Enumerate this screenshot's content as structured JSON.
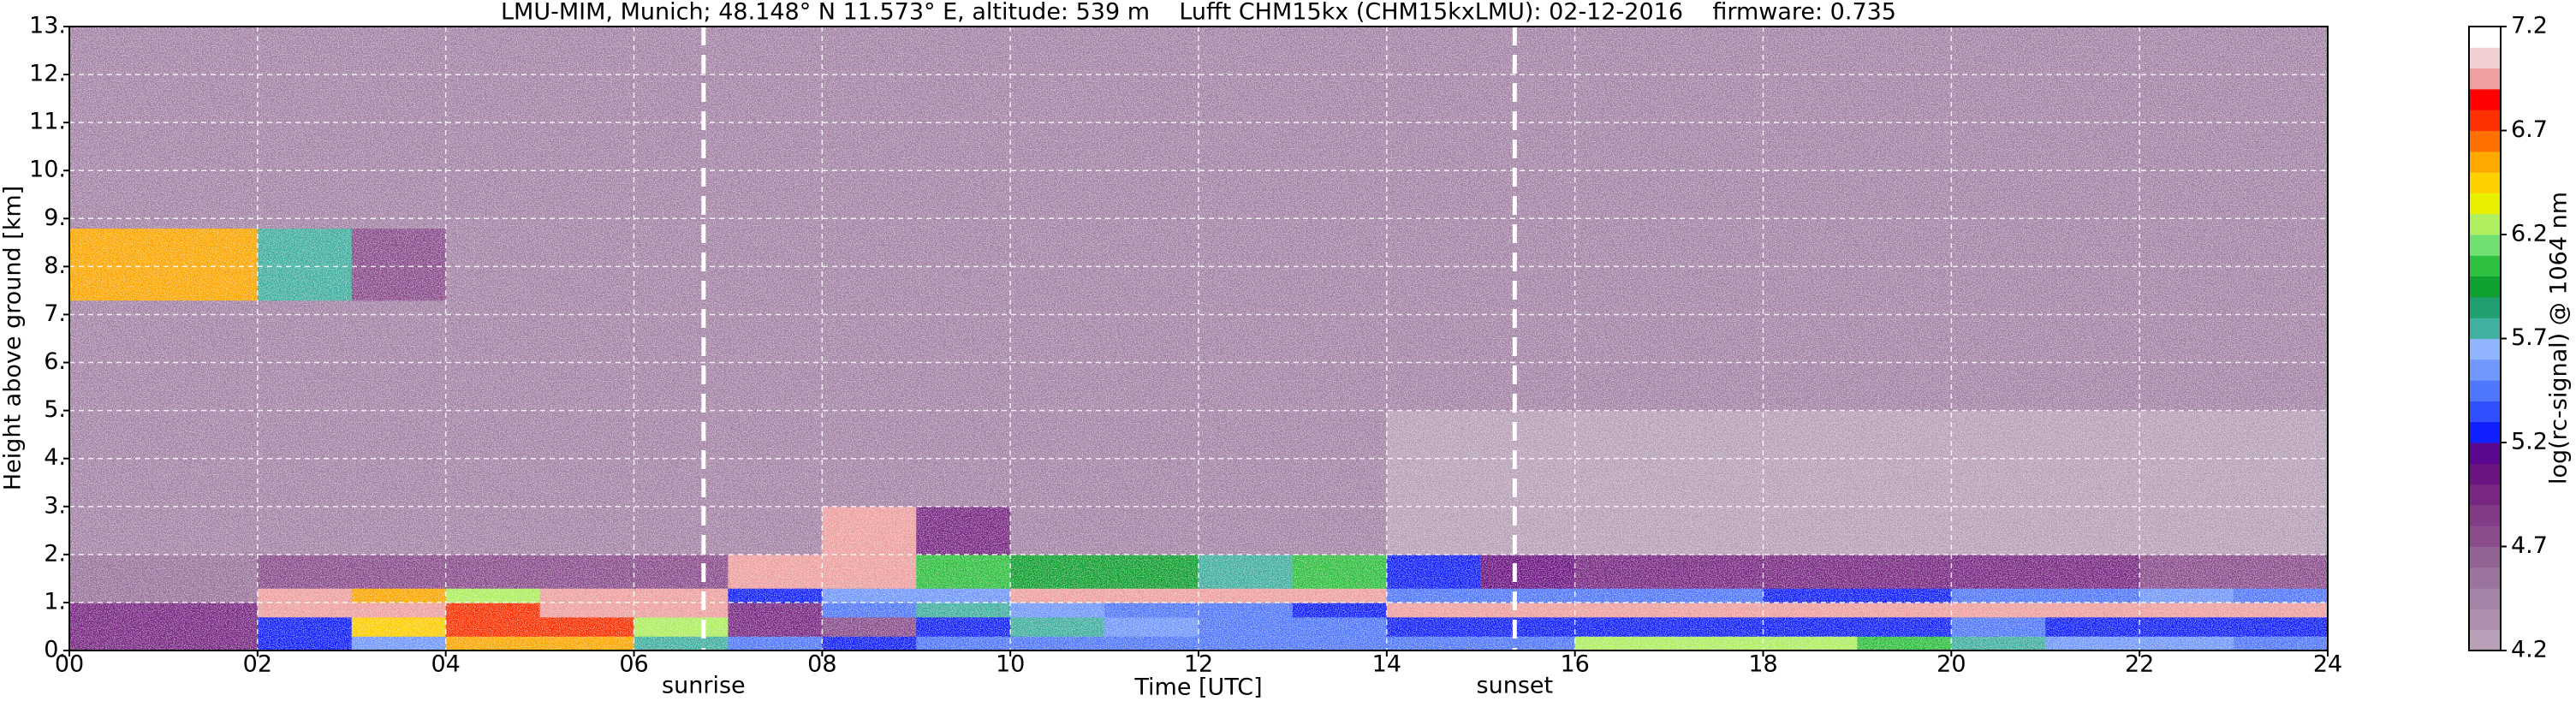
{
  "chart_data": {
    "type": "heatmap",
    "title": "LMU-MIM, Munich; 48.148° N 11.573° E, altitude: 539 m    Lufft CHM15kx (CHM15kxLMU): 02-12-2016    firmware: 0.735",
    "xlabel": "Time [UTC]",
    "ylabel": "Height above ground [km]",
    "colorbar_label": "log(rc-signal) @ 1064 nm",
    "xlim": [
      0,
      24
    ],
    "ylim": [
      0,
      13
    ],
    "xticks": [
      {
        "value": 0,
        "label": "00"
      },
      {
        "value": 2,
        "label": "02"
      },
      {
        "value": 4,
        "label": "04"
      },
      {
        "value": 6,
        "label": "06"
      },
      {
        "value": 8,
        "label": "08"
      },
      10,
      12,
      14,
      16,
      18,
      20,
      22,
      24
    ],
    "yticks": [
      {
        "value": 0,
        "label": "0."
      },
      {
        "value": 1,
        "label": "1."
      },
      {
        "value": 2,
        "label": "2."
      },
      {
        "value": 3,
        "label": "3."
      },
      {
        "value": 4,
        "label": "4."
      },
      {
        "value": 5,
        "label": "5."
      },
      {
        "value": 6,
        "label": "6."
      },
      {
        "value": 7,
        "label": "7."
      },
      {
        "value": 8,
        "label": "8."
      },
      {
        "value": 9,
        "label": "9."
      },
      {
        "value": 10,
        "label": "10."
      },
      {
        "value": 11,
        "label": "11."
      },
      {
        "value": 12,
        "label": "12."
      },
      {
        "value": 13,
        "label": "13."
      }
    ],
    "grid": true,
    "grid_color": "#ffffff",
    "clim": [
      4.2,
      7.2
    ],
    "cticks": [
      4.2,
      4.7,
      5.2,
      5.7,
      6.2,
      6.7,
      7.2
    ],
    "colorscale": [
      "#b8a0b8",
      "#ae90ae",
      "#a484a6",
      "#9a749c",
      "#926494",
      "#8a4c8c",
      "#823c86",
      "#782882",
      "#6c1482",
      "#5a0890",
      "#1020ff",
      "#3050ff",
      "#5078ff",
      "#7098ff",
      "#90b4ff",
      "#40b0a0",
      "#20a070",
      "#10a030",
      "#30c040",
      "#70e070",
      "#b0f060",
      "#e8f000",
      "#ffd000",
      "#ffa800",
      "#ff7000",
      "#ff3000",
      "#ff0000",
      "#f0a0a0",
      "#f0d0d0",
      "#ffffff"
    ],
    "x_edges": [
      0,
      1,
      2,
      3,
      4,
      5,
      6,
      7,
      8,
      9,
      10,
      11,
      12,
      13,
      14,
      15,
      16,
      17,
      18,
      19,
      20,
      21,
      22,
      23,
      24
    ],
    "y_edges": [
      0,
      0.3,
      0.7,
      1.0,
      1.3,
      2.0,
      3.0,
      5.0,
      7.3,
      8.8,
      13
    ],
    "z": [
      [
        5.0,
        5.0,
        5.2,
        5.6,
        6.5,
        6.5,
        5.8,
        5.4,
        5.3,
        5.4,
        5.5,
        5.4,
        5.5,
        5.4,
        5.4,
        5.5,
        6.2,
        6.3,
        6.3,
        6.0,
        5.8,
        5.6,
        5.6,
        5.4
      ],
      [
        4.9,
        4.9,
        5.2,
        6.4,
        6.8,
        6.7,
        6.2,
        4.9,
        4.8,
        5.2,
        5.8,
        5.6,
        5.4,
        5.4,
        5.3,
        5.3,
        5.2,
        5.3,
        5.3,
        5.3,
        5.4,
        5.3,
        5.2,
        5.2
      ],
      [
        5.0,
        5.0,
        6.9,
        6.9,
        6.8,
        6.9,
        6.9,
        5.0,
        5.5,
        5.7,
        5.6,
        5.4,
        5.4,
        5.3,
        6.9,
        7.0,
        7.0,
        7.0,
        6.9,
        7.0,
        6.9,
        6.9,
        6.9,
        7.0
      ],
      [
        4.6,
        4.6,
        6.9,
        6.6,
        6.3,
        7.0,
        7.0,
        5.3,
        5.6,
        5.6,
        6.9,
        6.9,
        7.0,
        6.9,
        5.4,
        5.4,
        5.4,
        5.4,
        5.3,
        5.3,
        5.4,
        5.4,
        5.6,
        5.5
      ],
      [
        4.6,
        4.6,
        4.7,
        4.8,
        4.7,
        4.7,
        4.7,
        7.0,
        7.0,
        6.0,
        5.9,
        5.9,
        5.8,
        6.0,
        5.3,
        5.1,
        5.0,
        5.0,
        5.0,
        4.9,
        4.9,
        4.9,
        4.8,
        4.8
      ],
      [
        4.4,
        4.4,
        4.4,
        4.4,
        4.4,
        4.4,
        4.4,
        4.4,
        6.9,
        5.0,
        4.4,
        4.4,
        4.4,
        4.4,
        4.3,
        4.3,
        4.3,
        4.3,
        4.3,
        4.3,
        4.3,
        4.3,
        4.3,
        4.3
      ],
      [
        4.5,
        4.5,
        4.5,
        4.5,
        4.5,
        4.5,
        4.5,
        4.5,
        4.5,
        4.5,
        4.5,
        4.5,
        4.5,
        4.5,
        4.3,
        4.3,
        4.3,
        4.3,
        4.3,
        4.3,
        4.3,
        4.3,
        4.3,
        4.3
      ],
      [
        4.5,
        4.5,
        4.5,
        4.5,
        4.5,
        4.5,
        4.5,
        4.5,
        4.5,
        4.5,
        4.5,
        4.5,
        4.5,
        4.5,
        4.4,
        4.4,
        4.4,
        4.4,
        4.4,
        4.4,
        4.4,
        4.4,
        4.4,
        4.4
      ],
      [
        6.6,
        6.5,
        5.8,
        4.8,
        4.5,
        4.5,
        4.5,
        4.5,
        4.5,
        4.5,
        4.5,
        4.5,
        4.5,
        4.5,
        4.5,
        4.5,
        4.5,
        4.5,
        4.5,
        4.5,
        4.5,
        4.5,
        4.5,
        4.5
      ],
      [
        4.5,
        4.5,
        4.5,
        4.5,
        4.5,
        4.5,
        4.5,
        4.5,
        4.5,
        4.5,
        4.5,
        4.5,
        4.5,
        4.5,
        4.5,
        4.5,
        4.5,
        4.5,
        4.5,
        4.5,
        4.5,
        4.5,
        4.5,
        4.5
      ]
    ],
    "annotations": [
      {
        "text": "sunrise",
        "x": 6.74
      },
      {
        "text": "sunset",
        "x": 15.36
      }
    ]
  }
}
